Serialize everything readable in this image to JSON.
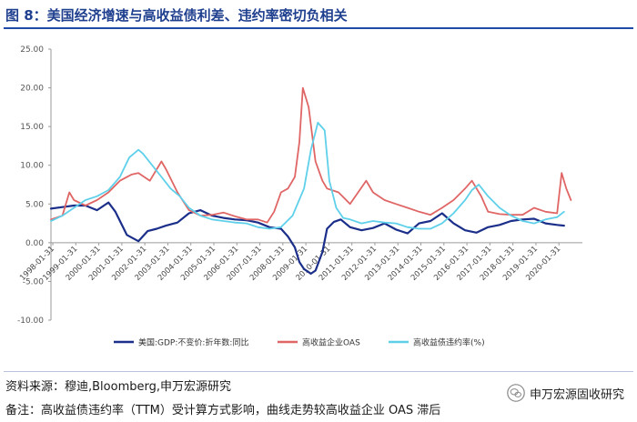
{
  "title": "图 8：美国经济增速与高收益债利差、违约率密切负相关",
  "chart_data": {
    "type": "line",
    "ylim": [
      -10,
      25
    ],
    "yticks": [
      "25.00",
      "20.00",
      "15.00",
      "10.00",
      "5.00",
      "0.00",
      "-5.00",
      "-10.00"
    ],
    "ytick_values": [
      25,
      20,
      15,
      10,
      5,
      0,
      -5,
      -10
    ],
    "xlim": [
      1998.0,
      2021.1
    ],
    "xticks": [
      "1998-01-31",
      "1999-01-31",
      "2000-01-31",
      "2001-01-31",
      "2002-01-31",
      "2003-01-31",
      "2004-01-31",
      "2005-01-31",
      "2006-01-31",
      "2007-01-31",
      "2008-01-31",
      "2009-01-31",
      "2010-01-31",
      "2011-01-31",
      "2012-01-31",
      "2013-01-31",
      "2014-01-31",
      "2015-01-31",
      "2016-01-31",
      "2017-01-31",
      "2018-01-31",
      "2019-01-31",
      "2020-01-31"
    ],
    "xtick_values": [
      1998.08,
      1999.08,
      2000.08,
      2001.08,
      2002.08,
      2003.08,
      2004.08,
      2005.08,
      2006.08,
      2007.08,
      2008.08,
      2009.08,
      2010.08,
      2011.08,
      2012.08,
      2013.08,
      2014.08,
      2015.08,
      2016.08,
      2017.08,
      2018.08,
      2019.08,
      2020.08
    ],
    "grid": false,
    "legend_position": "bottom",
    "series": [
      {
        "name": "美国:GDP:不变价:折年数:同比",
        "color": "#1b2f8a",
        "x": [
          1998.0,
          1998.5,
          1999.0,
          1999.5,
          2000.0,
          2000.5,
          2000.8,
          2001.3,
          2001.8,
          2002.2,
          2002.6,
          2003.0,
          2003.5,
          2004.0,
          2004.5,
          2005.0,
          2005.5,
          2006.0,
          2006.5,
          2007.0,
          2007.5,
          2008.0,
          2008.3,
          2008.6,
          2008.8,
          2009.0,
          2009.3,
          2009.5,
          2009.8,
          2010.0,
          2010.3,
          2010.6,
          2011.0,
          2011.5,
          2012.0,
          2012.5,
          2013.0,
          2013.5,
          2014.0,
          2014.5,
          2015.0,
          2015.5,
          2016.0,
          2016.5,
          2017.0,
          2017.5,
          2018.0,
          2018.5,
          2019.0,
          2019.5,
          2020.0,
          2020.3
        ],
        "y": [
          4.4,
          4.6,
          4.8,
          4.8,
          4.2,
          5.2,
          4.0,
          1.0,
          0.2,
          1.5,
          1.8,
          2.2,
          2.6,
          3.8,
          4.2,
          3.5,
          3.2,
          3.0,
          2.9,
          2.6,
          2.0,
          1.8,
          0.8,
          -0.6,
          -2.5,
          -3.4,
          -4.0,
          -3.6,
          -1.2,
          1.8,
          2.7,
          3.0,
          2.0,
          1.6,
          1.9,
          2.5,
          1.7,
          1.2,
          2.5,
          2.8,
          3.8,
          2.5,
          1.6,
          1.3,
          2.0,
          2.3,
          2.8,
          3.0,
          3.1,
          2.5,
          2.3,
          2.2
        ]
      },
      {
        "name": "高收益企业OAS",
        "color": "#e06666",
        "x": [
          1998.0,
          1998.5,
          1998.8,
          1999.0,
          1999.5,
          2000.0,
          2000.5,
          2001.0,
          2001.5,
          2001.8,
          2002.3,
          2002.8,
          2003.0,
          2003.5,
          2004.0,
          2004.5,
          2005.0,
          2005.5,
          2006.0,
          2006.5,
          2007.0,
          2007.4,
          2007.7,
          2008.0,
          2008.3,
          2008.6,
          2008.8,
          2008.95,
          2009.2,
          2009.5,
          2009.8,
          2010.0,
          2010.5,
          2011.0,
          2011.7,
          2012.0,
          2012.5,
          2013.0,
          2013.5,
          2014.0,
          2014.5,
          2015.0,
          2015.5,
          2016.0,
          2016.3,
          2016.7,
          2017.0,
          2017.5,
          2018.0,
          2018.5,
          2019.0,
          2019.5,
          2020.0,
          2020.2,
          2020.4,
          2020.6
        ],
        "y": [
          3.0,
          3.5,
          6.5,
          5.5,
          4.8,
          5.5,
          6.5,
          8.0,
          8.8,
          9.0,
          8.0,
          10.5,
          9.5,
          6.5,
          4.2,
          3.5,
          3.6,
          3.9,
          3.4,
          3.0,
          3.0,
          2.6,
          4.0,
          6.5,
          7.0,
          8.5,
          13.0,
          20.0,
          17.5,
          10.5,
          8.0,
          7.0,
          6.5,
          5.0,
          8.0,
          6.5,
          5.5,
          5.0,
          4.5,
          4.0,
          3.6,
          4.5,
          5.5,
          7.0,
          8.0,
          6.0,
          4.0,
          3.7,
          3.6,
          3.6,
          4.5,
          4.0,
          3.8,
          9.0,
          7.0,
          5.5
        ]
      },
      {
        "name": "高收益债违约率(%)",
        "color": "#5fd0ea",
        "x": [
          1998.0,
          1998.5,
          1999.0,
          1999.5,
          2000.0,
          2000.5,
          2001.0,
          2001.4,
          2001.8,
          2002.0,
          2002.4,
          2002.8,
          2003.2,
          2003.6,
          2004.0,
          2004.5,
          2005.0,
          2005.5,
          2006.0,
          2006.5,
          2007.0,
          2007.5,
          2008.0,
          2008.5,
          2009.0,
          2009.3,
          2009.6,
          2009.9,
          2010.1,
          2010.4,
          2010.7,
          2011.0,
          2011.5,
          2012.0,
          2012.5,
          2013.0,
          2013.5,
          2014.0,
          2014.5,
          2015.0,
          2015.5,
          2016.0,
          2016.3,
          2016.6,
          2017.0,
          2017.5,
          2018.0,
          2018.5,
          2019.0,
          2019.5,
          2020.0,
          2020.3
        ],
        "y": [
          2.8,
          3.5,
          4.5,
          5.5,
          6.0,
          6.8,
          8.5,
          11.0,
          12.0,
          11.5,
          10.0,
          8.5,
          7.0,
          6.0,
          4.5,
          3.5,
          3.0,
          2.8,
          2.6,
          2.5,
          2.0,
          1.8,
          2.0,
          3.5,
          7.0,
          12.0,
          15.5,
          14.5,
          8.0,
          4.5,
          3.2,
          3.0,
          2.5,
          2.8,
          2.6,
          2.5,
          2.0,
          1.8,
          1.8,
          2.5,
          3.8,
          5.5,
          6.8,
          7.5,
          6.0,
          4.5,
          3.5,
          2.8,
          2.5,
          3.0,
          3.3,
          4.0
        ]
      }
    ]
  },
  "footer": {
    "source": "资料来源：穆迪,Bloomberg,申万宏源研究",
    "note": "备注：高收益债违约率（TTM）受计算方式影响，曲线走势较高收益企业 OAS 滞后",
    "watermark": "申万宏源固收研究"
  }
}
